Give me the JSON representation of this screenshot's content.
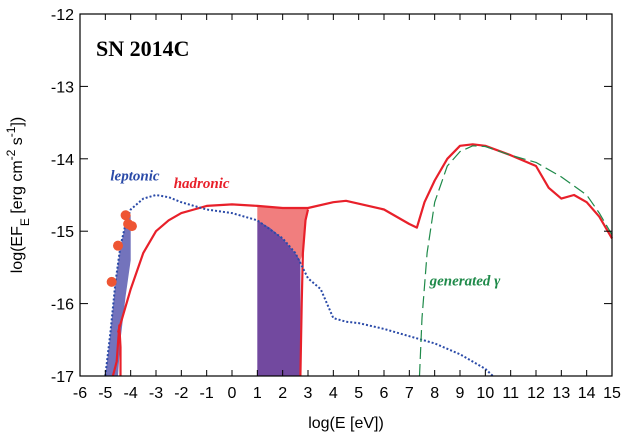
{
  "chart_data": {
    "type": "line",
    "title": "SN 2014C",
    "xlabel": "log(E [eV])",
    "ylabel": {
      "prefix": "log(EF",
      "sub1": "E",
      "mid": " [erg cm",
      "sup1": "-2",
      "mid2": " s",
      "sup2": "-1",
      "suffix": "])"
    },
    "xlim": [
      -6,
      15
    ],
    "ylim": [
      -17,
      -12
    ],
    "xticks": [
      -6,
      -5,
      -4,
      -3,
      -2,
      -1,
      0,
      1,
      2,
      3,
      4,
      5,
      6,
      7,
      8,
      9,
      10,
      11,
      12,
      13,
      14,
      15
    ],
    "xtick_labels": [
      "-6",
      "-5",
      "-4",
      "-3",
      "-2",
      "-1",
      "0",
      "1",
      "2",
      "3",
      "4",
      "5",
      "6",
      "7",
      "8",
      "9",
      "10",
      "11",
      "12",
      "13",
      "14",
      "15"
    ],
    "yticks": [
      -17,
      -16,
      -15,
      -14,
      -13,
      -12
    ],
    "ytick_labels": [
      "-17",
      "-16",
      "-15",
      "-14",
      "-13",
      "-12"
    ],
    "grid": false,
    "colors": {
      "leptonic": "#2a4aa8",
      "hadronic": "#e8202a",
      "generated": "#1f8a4a",
      "points": "#ee5533",
      "lep_fill": "#5a5ab0",
      "lep_fill_band": "#6a3f9a",
      "had_fill": "#f07070"
    },
    "annotations": [
      {
        "text": "leptonic",
        "x": -4.8,
        "y": -14.3,
        "color": "#2a4aa8"
      },
      {
        "text": "hadronic",
        "x": -2.3,
        "y": -14.4,
        "color": "#e8202a"
      },
      {
        "text": "generated γ",
        "x": 7.8,
        "y": -15.75,
        "color": "#1f8a4a"
      }
    ],
    "series": [
      {
        "name": "hadronic",
        "style": "solid",
        "x": [
          -4.5,
          -4.0,
          -3.5,
          -3.0,
          -2.5,
          -2.0,
          -1.5,
          -1.0,
          0.0,
          1.0,
          2.0,
          3.0,
          4.0,
          4.5,
          5.0,
          6.0,
          7.0,
          7.3,
          7.6,
          8.0,
          8.5,
          9.0,
          9.5,
          10.0,
          11.0,
          12.0,
          12.5,
          13.0,
          13.5,
          14.0,
          14.5,
          15.0
        ],
        "y": [
          -16.4,
          -15.8,
          -15.3,
          -15.0,
          -14.85,
          -14.75,
          -14.7,
          -14.65,
          -14.63,
          -14.65,
          -14.68,
          -14.68,
          -14.6,
          -14.58,
          -14.62,
          -14.7,
          -14.9,
          -14.95,
          -14.6,
          -14.3,
          -14.0,
          -13.82,
          -13.8,
          -13.82,
          -13.95,
          -14.1,
          -14.4,
          -14.55,
          -14.5,
          -14.6,
          -14.8,
          -15.1
        ]
      },
      {
        "name": "hadronic-low",
        "style": "solid",
        "x": [
          -4.4,
          -4.4,
          -4.45,
          -4.55,
          -4.7
        ],
        "y": [
          -17.0,
          -16.6,
          -16.3,
          -16.8,
          -17.0
        ]
      },
      {
        "name": "hadronic-band-right",
        "style": "solid",
        "x": [
          2.7,
          2.75,
          2.8,
          2.9,
          3.0
        ],
        "y": [
          -17.0,
          -16.0,
          -15.3,
          -14.85,
          -14.7
        ]
      },
      {
        "name": "leptonic",
        "style": "dotted",
        "x": [
          -5.0,
          -4.8,
          -4.6,
          -4.4,
          -4.2,
          -4.0,
          -3.5,
          -3.0,
          -2.5,
          -2.0,
          -1.5,
          -1.0,
          0.0,
          1.0,
          2.0,
          2.5,
          3.0,
          3.5,
          4.0,
          4.5,
          5.0,
          6.0,
          7.0,
          8.0,
          9.0,
          10.0,
          10.3
        ],
        "y": [
          -17.0,
          -16.4,
          -15.7,
          -15.2,
          -14.9,
          -14.7,
          -14.55,
          -14.5,
          -14.53,
          -14.6,
          -14.65,
          -14.7,
          -14.75,
          -14.85,
          -15.1,
          -15.3,
          -15.65,
          -15.8,
          -16.2,
          -16.25,
          -16.27,
          -16.35,
          -16.45,
          -16.55,
          -16.7,
          -16.9,
          -17.0
        ]
      },
      {
        "name": "generated γ",
        "style": "dashed",
        "x": [
          7.4,
          7.5,
          7.7,
          8.0,
          8.5,
          9.0,
          9.5,
          10.0,
          11.0,
          12.0,
          13.0,
          14.0,
          14.5,
          15.0
        ],
        "y": [
          -17.0,
          -16.2,
          -15.3,
          -14.6,
          -14.1,
          -13.9,
          -13.82,
          -13.83,
          -13.95,
          -14.05,
          -14.25,
          -14.5,
          -14.75,
          -15.05
        ]
      }
    ],
    "fills": [
      {
        "name": "leptonic-low-band",
        "color": "#5a5ab0",
        "opacity": 0.85,
        "points": [
          [
            -5.0,
            -17.0
          ],
          [
            -4.8,
            -16.4
          ],
          [
            -4.6,
            -15.7
          ],
          [
            -4.4,
            -15.2
          ],
          [
            -4.2,
            -14.9
          ],
          [
            -4.0,
            -14.78
          ],
          [
            -4.0,
            -15.4
          ],
          [
            -4.2,
            -15.9
          ],
          [
            -4.4,
            -16.5
          ],
          [
            -4.5,
            -17.0
          ]
        ]
      },
      {
        "name": "leptonic-mid-band",
        "color": "#6a3f9a",
        "opacity": 0.95,
        "points": [
          [
            1.0,
            -17.0
          ],
          [
            1.0,
            -14.85
          ],
          [
            1.5,
            -14.95
          ],
          [
            2.0,
            -15.1
          ],
          [
            2.5,
            -15.3
          ],
          [
            2.7,
            -15.4
          ],
          [
            2.7,
            -17.0
          ]
        ]
      },
      {
        "name": "hadronic-mid-band",
        "color": "#f07070",
        "opacity": 0.9,
        "points": [
          [
            1.0,
            -14.85
          ],
          [
            1.0,
            -14.65
          ],
          [
            2.0,
            -14.68
          ],
          [
            3.0,
            -14.68
          ],
          [
            3.0,
            -14.7
          ],
          [
            2.9,
            -14.85
          ],
          [
            2.8,
            -15.3
          ],
          [
            2.7,
            -15.4
          ],
          [
            2.5,
            -15.3
          ],
          [
            2.0,
            -15.1
          ],
          [
            1.5,
            -14.95
          ]
        ]
      }
    ],
    "points": [
      {
        "x": -4.2,
        "y": -14.78
      },
      {
        "x": -4.1,
        "y": -14.9
      },
      {
        "x": -3.95,
        "y": -14.93
      },
      {
        "x": -4.5,
        "y": -15.2
      },
      {
        "x": -4.75,
        "y": -15.7
      }
    ]
  }
}
